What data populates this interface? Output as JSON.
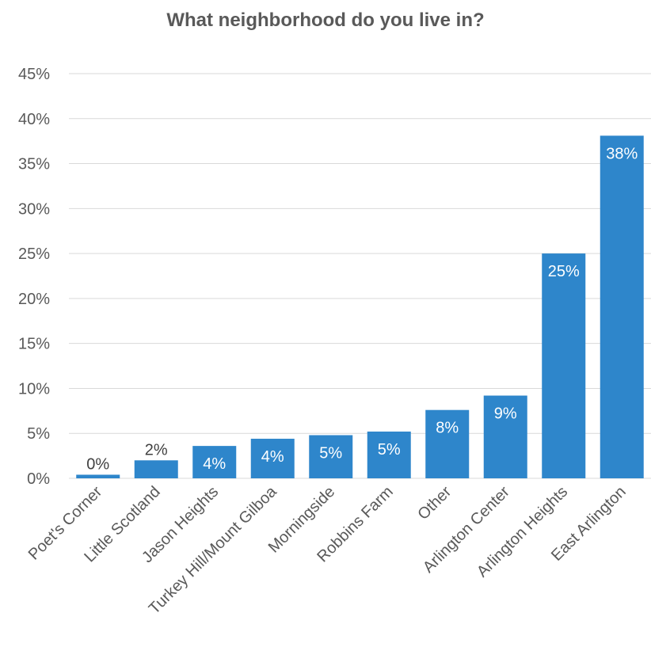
{
  "chart_data": {
    "type": "bar",
    "title": "What neighborhood do you live in?",
    "xlabel": "",
    "ylabel": "",
    "ylim": [
      0,
      45
    ],
    "y_ticks": [
      "0%",
      "5%",
      "10%",
      "15%",
      "20%",
      "25%",
      "30%",
      "35%",
      "40%",
      "45%"
    ],
    "grid": true,
    "categories": [
      "Poet's Corner",
      "Little Scotland",
      "Jason Heights",
      "Turkey Hill/Mount Gilboa",
      "Morningside",
      "Robbins Farm",
      "Other",
      "Arlington Center",
      "Arlington Heights",
      "East Arlington"
    ],
    "values": [
      0.4,
      2.0,
      3.6,
      4.4,
      4.8,
      5.2,
      7.6,
      9.2,
      25.0,
      38.1
    ],
    "data_labels": [
      "0%",
      "2%",
      "4%",
      "4%",
      "5%",
      "5%",
      "8%",
      "9%",
      "25%",
      "38%"
    ],
    "bar_color": "#2E86CB",
    "gridline_color": "#D9D9D9",
    "axis_text_color": "#595959"
  }
}
